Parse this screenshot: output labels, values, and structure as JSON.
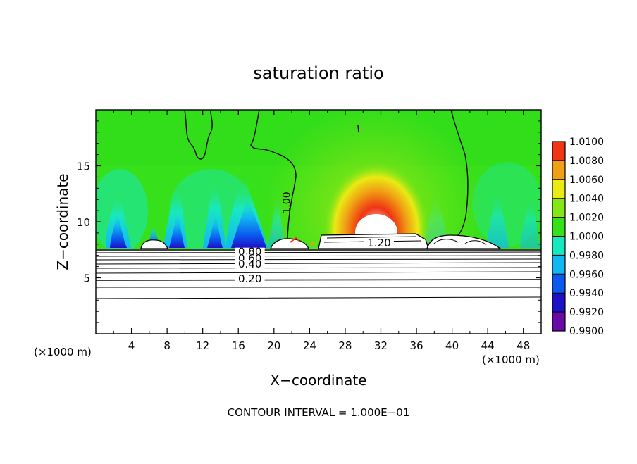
{
  "chart_data": {
    "type": "heatmap",
    "title": "saturation ratio",
    "xlabel": "X−coordinate",
    "ylabel": "Z−coordinate",
    "x_unit_label": "(×1000 m)",
    "z_unit_label": "(×1000 m)",
    "footer": "CONTOUR INTERVAL = 1.000E−01",
    "xlim": [
      0,
      50
    ],
    "ylim": [
      0,
      20
    ],
    "x_ticks": [
      4,
      8,
      12,
      16,
      20,
      24,
      28,
      32,
      36,
      40,
      44,
      48
    ],
    "y_ticks": [
      5,
      10,
      15
    ],
    "colorbar": {
      "levels": [
        "0.9900",
        "0.9920",
        "0.9940",
        "0.9960",
        "0.9980",
        "1.0000",
        "1.0020",
        "1.0040",
        "1.0060",
        "1.0080",
        "1.0100"
      ],
      "colors": [
        "#6a0aa6",
        "#1e10c8",
        "#0a5af0",
        "#12b6f0",
        "#18e8c0",
        "#36e01a",
        "#84e614",
        "#eaea14",
        "#f0a014",
        "#f03414",
        "#f08080"
      ]
    },
    "contour_labels": [
      {
        "text": "1.00",
        "x": 21.8,
        "z": 11.7
      },
      {
        "text": "1.20",
        "x": 31.8,
        "z": 7.8
      },
      {
        "text": "0.80",
        "x": 17.3,
        "z": 7.0
      },
      {
        "text": "0.60",
        "x": 17.3,
        "z": 6.4
      },
      {
        "text": "0.40",
        "x": 17.3,
        "z": 5.9
      },
      {
        "text": "0.20",
        "x": 17.3,
        "z": 4.6
      }
    ]
  }
}
